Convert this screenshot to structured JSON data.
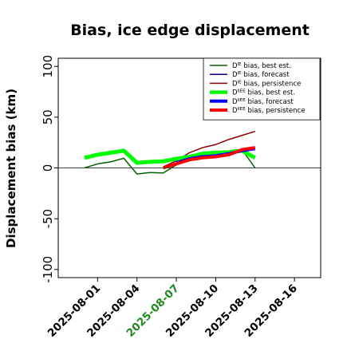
{
  "chart_data": {
    "type": "line",
    "title": "Bias, ice edge displacement",
    "ylabel": "Displacement bias (km)",
    "xlabel": "",
    "ylim": [
      -108,
      108
    ],
    "xlim": [
      "2025-07-29",
      "2025-08-18"
    ],
    "xticks": [
      "2025-08-01",
      "2025-08-04",
      "2025-08-07",
      "2025-08-10",
      "2025-08-13",
      "2025-08-16"
    ],
    "highlighted_xtick": "2025-08-07",
    "highlight_color": "#228b22",
    "yticks": [
      -100,
      -50,
      0,
      50,
      100
    ],
    "zero_line": true,
    "grid": false,
    "legend_position": "upper right",
    "series": [
      {
        "name": "bias, best est.",
        "label_prefix": "D",
        "label_sup": "IE",
        "color": "#006400",
        "linewidth": 1.5,
        "x": [
          "2025-07-31",
          "2025-08-01",
          "2025-08-02",
          "2025-08-03",
          "2025-08-04",
          "2025-08-05",
          "2025-08-06",
          "2025-08-07",
          "2025-08-08",
          "2025-08-09",
          "2025-08-10",
          "2025-08-11",
          "2025-08-12",
          "2025-08-13"
        ],
        "values": [
          0,
          4,
          6,
          9.5,
          -6,
          -4.5,
          -5,
          3,
          10,
          13,
          13.5,
          13,
          18,
          0
        ]
      },
      {
        "name": "bias, forecast",
        "label_prefix": "D",
        "label_sup": "IE",
        "color": "#00008b",
        "linewidth": 1.5,
        "x": [
          "2025-08-07",
          "2025-08-08",
          "2025-08-09",
          "2025-08-10",
          "2025-08-11",
          "2025-08-12",
          "2025-08-13"
        ],
        "values": [
          8,
          11,
          13,
          15,
          16,
          18,
          20
        ]
      },
      {
        "name": "bias, persistence",
        "label_prefix": "D",
        "label_sup": "IE",
        "color": "#8b0000",
        "linewidth": 1.5,
        "x": [
          "2025-08-06",
          "2025-08-07",
          "2025-08-08",
          "2025-08-09",
          "2025-08-10",
          "2025-08-11",
          "2025-08-12",
          "2025-08-13"
        ],
        "values": [
          1,
          7,
          15,
          20,
          23,
          28,
          32,
          36
        ]
      },
      {
        "name": "bias, best est.",
        "label_prefix": "D",
        "label_sup": "IIEE",
        "color": "#00ff00",
        "linewidth": 5,
        "x": [
          "2025-07-31",
          "2025-08-01",
          "2025-08-02",
          "2025-08-03",
          "2025-08-04",
          "2025-08-05",
          "2025-08-06",
          "2025-08-07",
          "2025-08-08",
          "2025-08-09",
          "2025-08-10",
          "2025-08-11",
          "2025-08-12",
          "2025-08-13"
        ],
        "values": [
          10,
          13,
          15,
          17,
          5,
          6,
          6.5,
          9,
          11,
          14,
          15,
          15.5,
          17,
          10
        ]
      },
      {
        "name": "bias, forecast",
        "label_prefix": "D",
        "label_sup": "IIEE",
        "color": "#0000ff",
        "linewidth": 4,
        "x": [
          "2025-08-07",
          "2025-08-08",
          "2025-08-09",
          "2025-08-10",
          "2025-08-11",
          "2025-08-12",
          "2025-08-13"
        ],
        "values": [
          5,
          9,
          11,
          12,
          14,
          17,
          19
        ]
      },
      {
        "name": "bias, persistence",
        "label_prefix": "D",
        "label_sup": "IIEE",
        "color": "#ff0000",
        "linewidth": 4,
        "x": [
          "2025-08-06",
          "2025-08-07",
          "2025-08-08",
          "2025-08-09",
          "2025-08-10",
          "2025-08-11",
          "2025-08-12",
          "2025-08-13"
        ],
        "values": [
          0,
          4,
          8,
          10,
          11,
          13,
          18,
          20
        ]
      }
    ]
  }
}
